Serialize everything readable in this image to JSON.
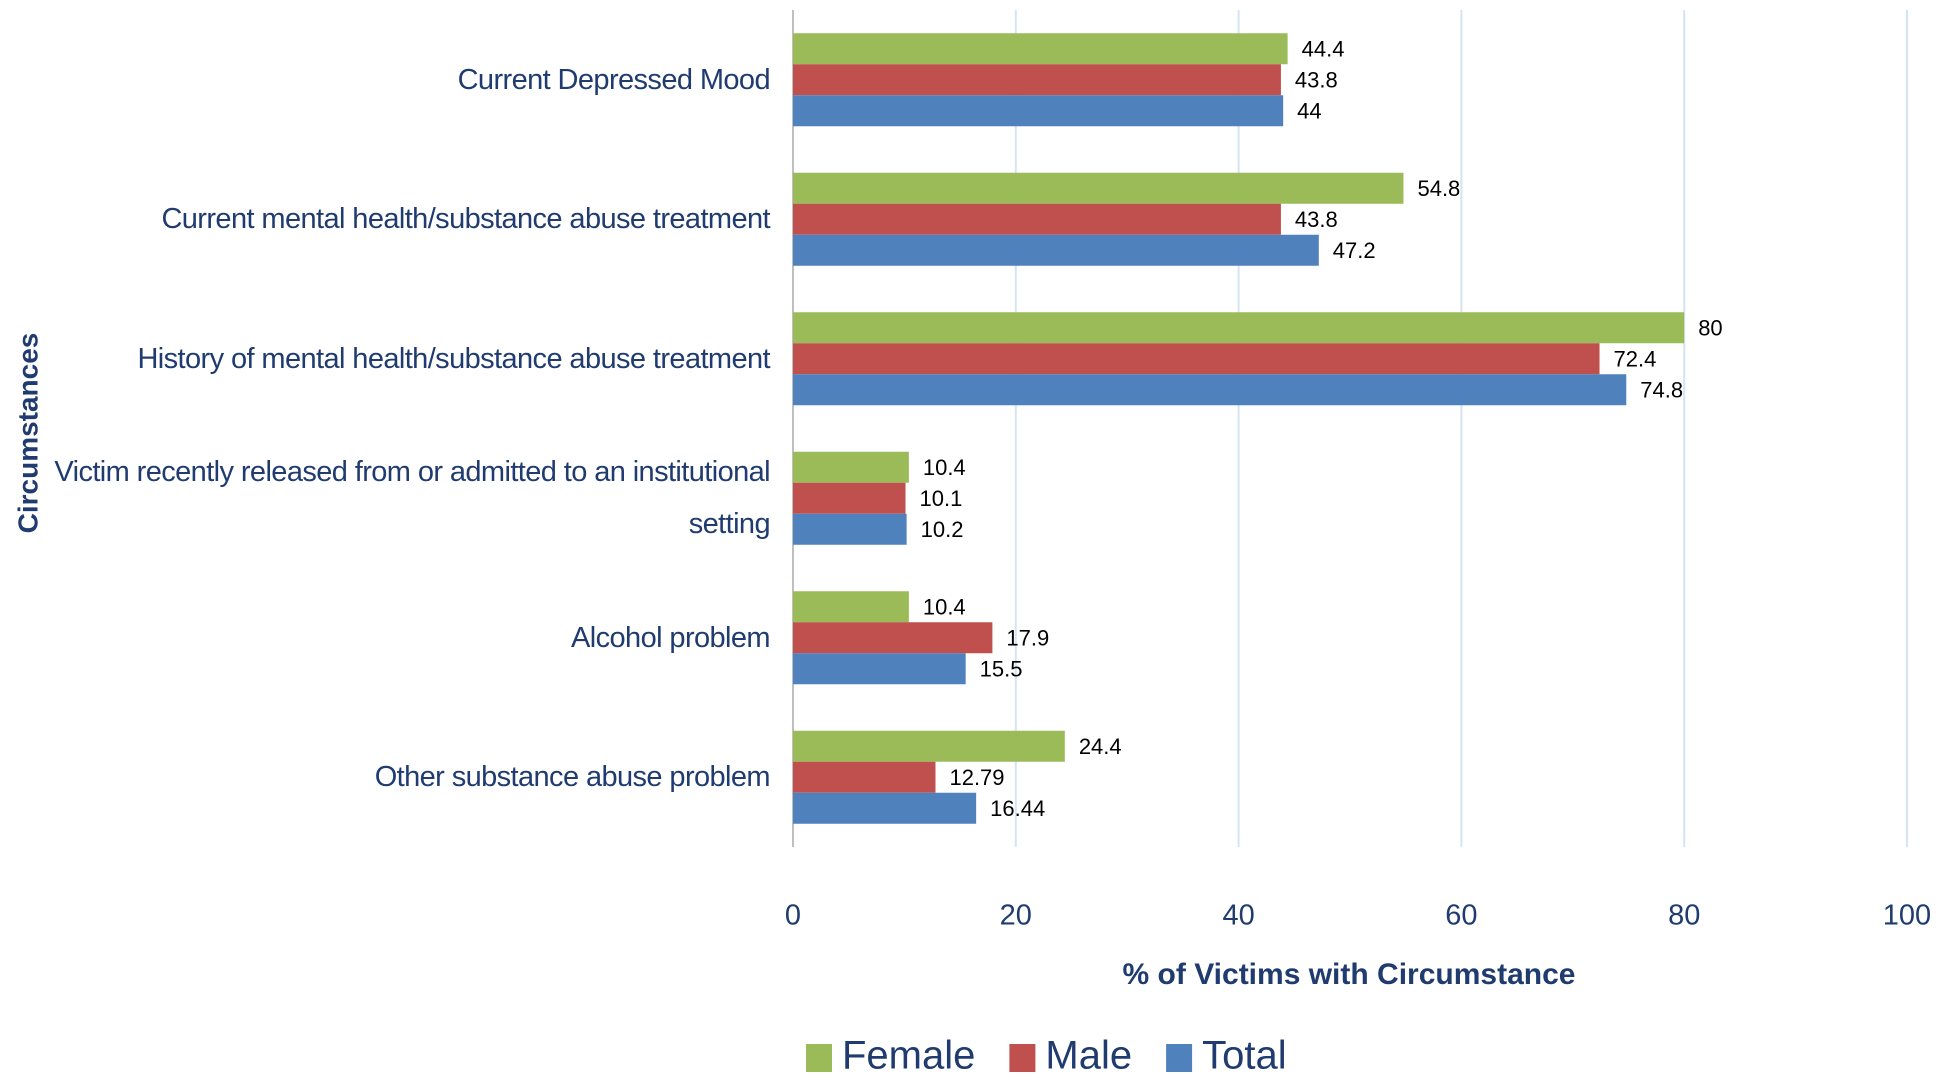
{
  "chart_data": {
    "type": "hbar",
    "categories": [
      "Current Depressed Mood",
      "Current mental health/substance abuse treatment",
      "History of mental health/substance abuse treatment",
      "Victim recently released from or admitted to an institutional setting",
      "Alcohol problem",
      "Other substance abuse problem"
    ],
    "series": [
      {
        "name": "Female",
        "color": "#9bbb59",
        "values": [
          44.4,
          54.8,
          80,
          10.4,
          10.4,
          24.4
        ]
      },
      {
        "name": "Male",
        "color": "#c0504d",
        "values": [
          43.8,
          43.8,
          72.4,
          10.1,
          17.9,
          12.79
        ]
      },
      {
        "name": "Total",
        "color": "#4f81bd",
        "values": [
          44,
          47.2,
          74.8,
          10.2,
          15.5,
          16.44
        ]
      }
    ],
    "x_label": "% of Victims with Circumstance",
    "y_label": "Circumstances",
    "xlim": [
      0,
      100
    ],
    "xticks": [
      0,
      20,
      40,
      60,
      80,
      100
    ],
    "grid": true,
    "legend": "bottom"
  }
}
